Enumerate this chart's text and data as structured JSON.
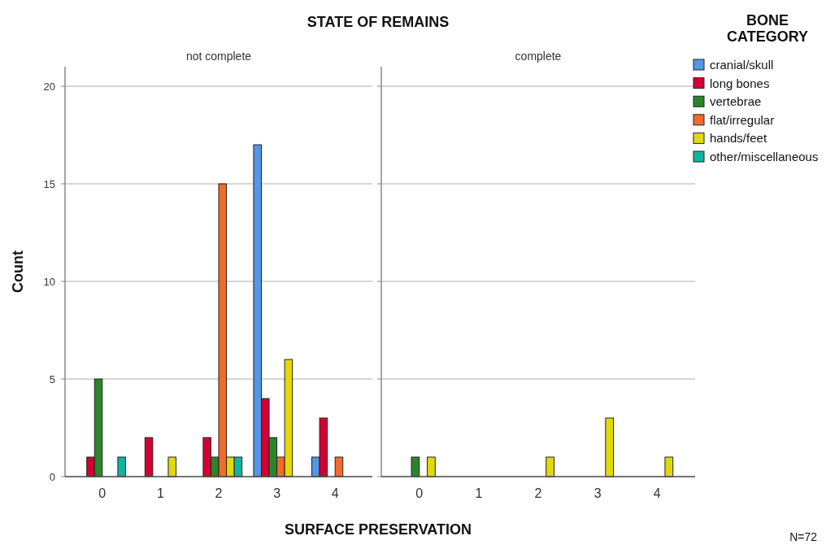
{
  "chart_data": [
    {
      "type": "bar",
      "title": "STATE OF REMAINS",
      "subtitle": "not complete",
      "xlabel": "SURFACE PRESERVATION",
      "ylabel": "Count",
      "categories": [
        "0",
        "1",
        "2",
        "3",
        "4"
      ],
      "ylim": [
        0,
        21
      ],
      "yticks": [
        0,
        5,
        10,
        15,
        20
      ],
      "grid": "y",
      "legend": false,
      "series": [
        {
          "color": "#5596e6",
          "values": [
            0,
            0,
            0,
            17,
            1
          ]
        },
        {
          "color": "#d50032",
          "values": [
            1,
            2,
            2,
            4,
            3
          ]
        },
        {
          "color": "#2a862a",
          "values": [
            5,
            0,
            1,
            2,
            0
          ]
        },
        {
          "color": "#f26b2a",
          "values": [
            0,
            0,
            15,
            1,
            1
          ]
        },
        {
          "color": "#e3d80b",
          "values": [
            0,
            1,
            1,
            6,
            0
          ]
        },
        {
          "color": "#10b5a0",
          "values": [
            1,
            0,
            1,
            0,
            0
          ]
        }
      ]
    },
    {
      "type": "bar",
      "subtitle": "complete",
      "categories": [
        "0",
        "1",
        "2",
        "3",
        "4"
      ],
      "ylim": [
        0,
        21
      ],
      "yticks": [
        0,
        5,
        10,
        15,
        20
      ],
      "grid": "y",
      "tick_labels": "x",
      "legend": "right",
      "legend_title": "BONE CATEGORY",
      "annotations": [
        "N=72"
      ],
      "series": [
        {
          "name": "cranial/skull",
          "color": "#5596e6",
          "values": [
            0,
            0,
            0,
            0,
            0
          ]
        },
        {
          "name": "long bones",
          "color": "#d50032",
          "values": [
            0,
            0,
            0,
            0,
            0
          ]
        },
        {
          "name": "vertebrae",
          "color": "#2a862a",
          "values": [
            1,
            0,
            0,
            0,
            0
          ]
        },
        {
          "name": "flat/irregular",
          "color": "#f26b2a",
          "values": [
            0,
            0,
            0,
            0,
            0
          ]
        },
        {
          "name": "hands/feet",
          "color": "#e3d80b",
          "values": [
            1,
            0,
            1,
            3,
            1
          ]
        },
        {
          "name": "other/miscellaneous",
          "color": "#10b5a0",
          "values": [
            0,
            0,
            0,
            0,
            0
          ]
        }
      ]
    }
  ]
}
